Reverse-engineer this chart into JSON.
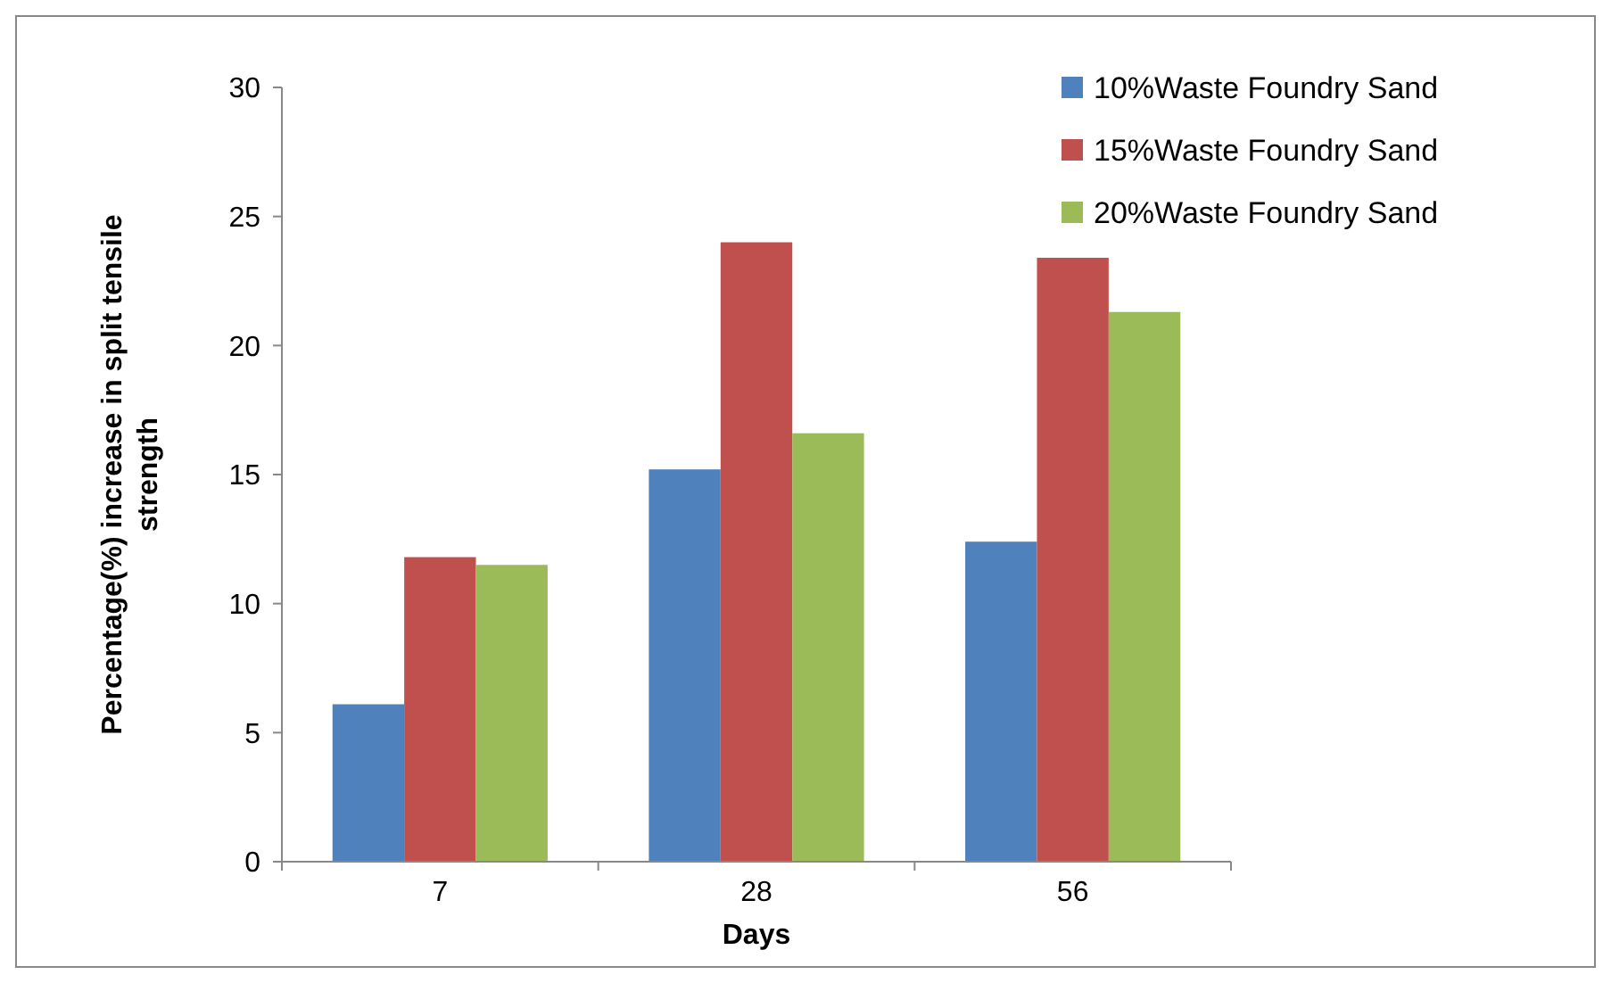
{
  "chart_data": {
    "type": "bar",
    "xlabel": "Days",
    "ylabel": "Percentage(%) increase in split tensile strength",
    "categories": [
      "7",
      "28",
      "56"
    ],
    "series": [
      {
        "name": "10%Waste Foundry Sand",
        "color": "#4f81bd",
        "values": [
          6.1,
          15.2,
          12.4
        ]
      },
      {
        "name": "15%Waste Foundry Sand",
        "color": "#c0504d",
        "values": [
          11.8,
          24.0,
          23.4
        ]
      },
      {
        "name": "20%Waste Foundry Sand",
        "color": "#9bbb59",
        "values": [
          11.5,
          16.6,
          21.3
        ]
      }
    ],
    "ylim": [
      0,
      30
    ],
    "yticks": [
      0,
      5,
      10,
      15,
      20,
      25,
      30
    ],
    "grid": false,
    "legend": "top right"
  }
}
